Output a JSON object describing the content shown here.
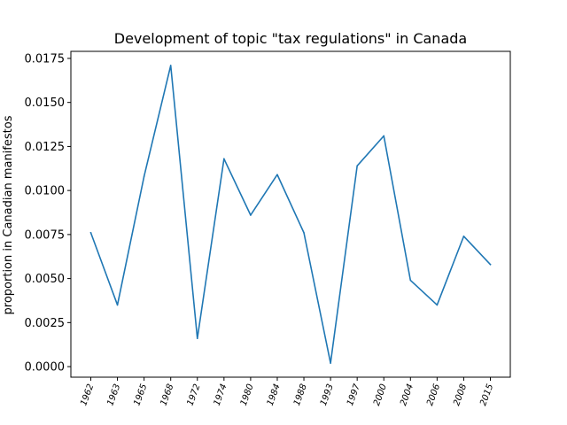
{
  "chart_data": {
    "type": "line",
    "title": "Development of topic \"tax regulations\" in Canada",
    "xlabel": "",
    "ylabel": "proportion in Canadian manifestos",
    "categories": [
      "1962",
      "1963",
      "1965",
      "1968",
      "1972",
      "1974",
      "1980",
      "1984",
      "1988",
      "1993",
      "1997",
      "2000",
      "2004",
      "2006",
      "2008",
      "2015"
    ],
    "series": [
      {
        "values": [
          0.0076,
          0.0035,
          0.0108,
          0.0171,
          0.0016,
          0.0118,
          0.0086,
          0.0109,
          0.0076,
          0.0002,
          0.0114,
          0.0131,
          0.0049,
          0.0035,
          0.0074,
          0.0058
        ],
        "color": "#1f77b4"
      }
    ],
    "yticks": [
      "0.0000",
      "0.0025",
      "0.0050",
      "0.0075",
      "0.0100",
      "0.0125",
      "0.0150",
      "0.0175"
    ],
    "ytick_values": [
      0,
      0.0025,
      0.005,
      0.0075,
      0.01,
      0.0125,
      0.015,
      0.0175
    ],
    "ylim": [
      -0.0006,
      0.0179
    ],
    "grid": false,
    "xtick_rotation": "slanted"
  }
}
